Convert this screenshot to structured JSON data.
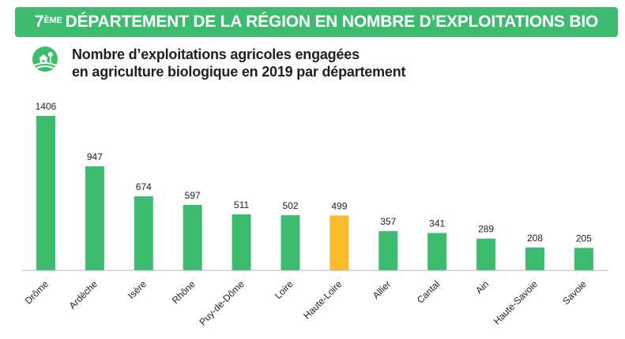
{
  "header": {
    "rank_number": "7",
    "rank_suffix": "ÈME",
    "title_rest": "DÉPARTEMENT DE LA RÉGION EN NOMBRE D’EXPLOITATIONS BIO"
  },
  "subtitle": {
    "line1": "Nombre d’exploitations agricoles engagées",
    "line2": "en agriculture biologique en 2019 par département",
    "icon": "farm-icon"
  },
  "colors": {
    "bar": "#3dbb6f",
    "highlight": "#fbbc2c",
    "banner": "#3dbb6f"
  },
  "chart_data": {
    "type": "bar",
    "title": "Nombre d’exploitations agricoles engagées en agriculture biologique en 2019 par département",
    "categories": [
      "Drôme",
      "Ardèche",
      "Isère",
      "Rhône",
      "Puy-de-Dôme",
      "Loire",
      "Haute-Loire",
      "Allier",
      "Cantal",
      "Ain",
      "Haute-Savoie",
      "Savoie"
    ],
    "values": [
      1406,
      947,
      674,
      597,
      511,
      502,
      499,
      357,
      341,
      289,
      208,
      205
    ],
    "highlight": "Haute-Loire",
    "xlabel": "",
    "ylabel": "",
    "ylim": [
      0,
      1406
    ],
    "grid": false,
    "legend": "none"
  }
}
